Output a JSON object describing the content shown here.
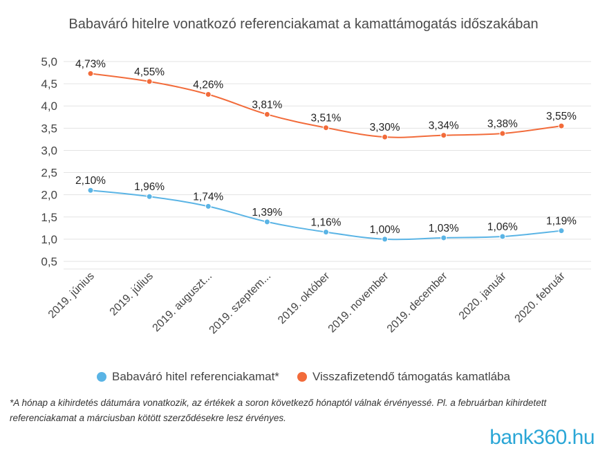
{
  "chart_data": {
    "type": "line",
    "title": "Babaváró hitelre vonatkozó referenciakamat a kamattámogatás időszakában",
    "categories": [
      "2019. június",
      "2019. július",
      "2019. auguszt...",
      "2019. szeptem...",
      "2019. október",
      "2019. november",
      "2019. december",
      "2020. január",
      "2020. február"
    ],
    "y_ticks": [
      "5,0",
      "4,5",
      "4,0",
      "3,5",
      "3,0",
      "2,5",
      "2,0",
      "1,5",
      "1,0",
      "0,5"
    ],
    "ylim": [
      0.5,
      5.0
    ],
    "grid": true,
    "legend_position": "bottom",
    "series": [
      {
        "name": "Babaváró hitel referenciakamat*",
        "color": "#5ab4e5",
        "values": [
          2.1,
          1.96,
          1.74,
          1.39,
          1.16,
          1.0,
          1.03,
          1.06,
          1.19
        ],
        "labels": [
          "2,10%",
          "1,96%",
          "1,74%",
          "1,39%",
          "1,16%",
          "1,00%",
          "1,03%",
          "1,06%",
          "1,19%"
        ]
      },
      {
        "name": "Visszafizetendő támogatás kamatlába",
        "color": "#f26b3a",
        "values": [
          4.73,
          4.55,
          4.26,
          3.81,
          3.51,
          3.3,
          3.34,
          3.38,
          3.55
        ],
        "labels": [
          "4,73%",
          "4,55%",
          "4,26%",
          "3,81%",
          "3,51%",
          "3,30%",
          "3,34%",
          "3,38%",
          "3,55%"
        ]
      }
    ]
  },
  "footnote": "*A hónap a kihirdetés dátumára vonatkozik, az értékek a soron következő hónaptól válnak érvényessé. Pl. a februárban kihirdetett referenciakamat a márciusban kötött szerződésekre lesz érvényes.",
  "logo": {
    "text": "bank360.hu",
    "color": "#2aa6d6"
  }
}
